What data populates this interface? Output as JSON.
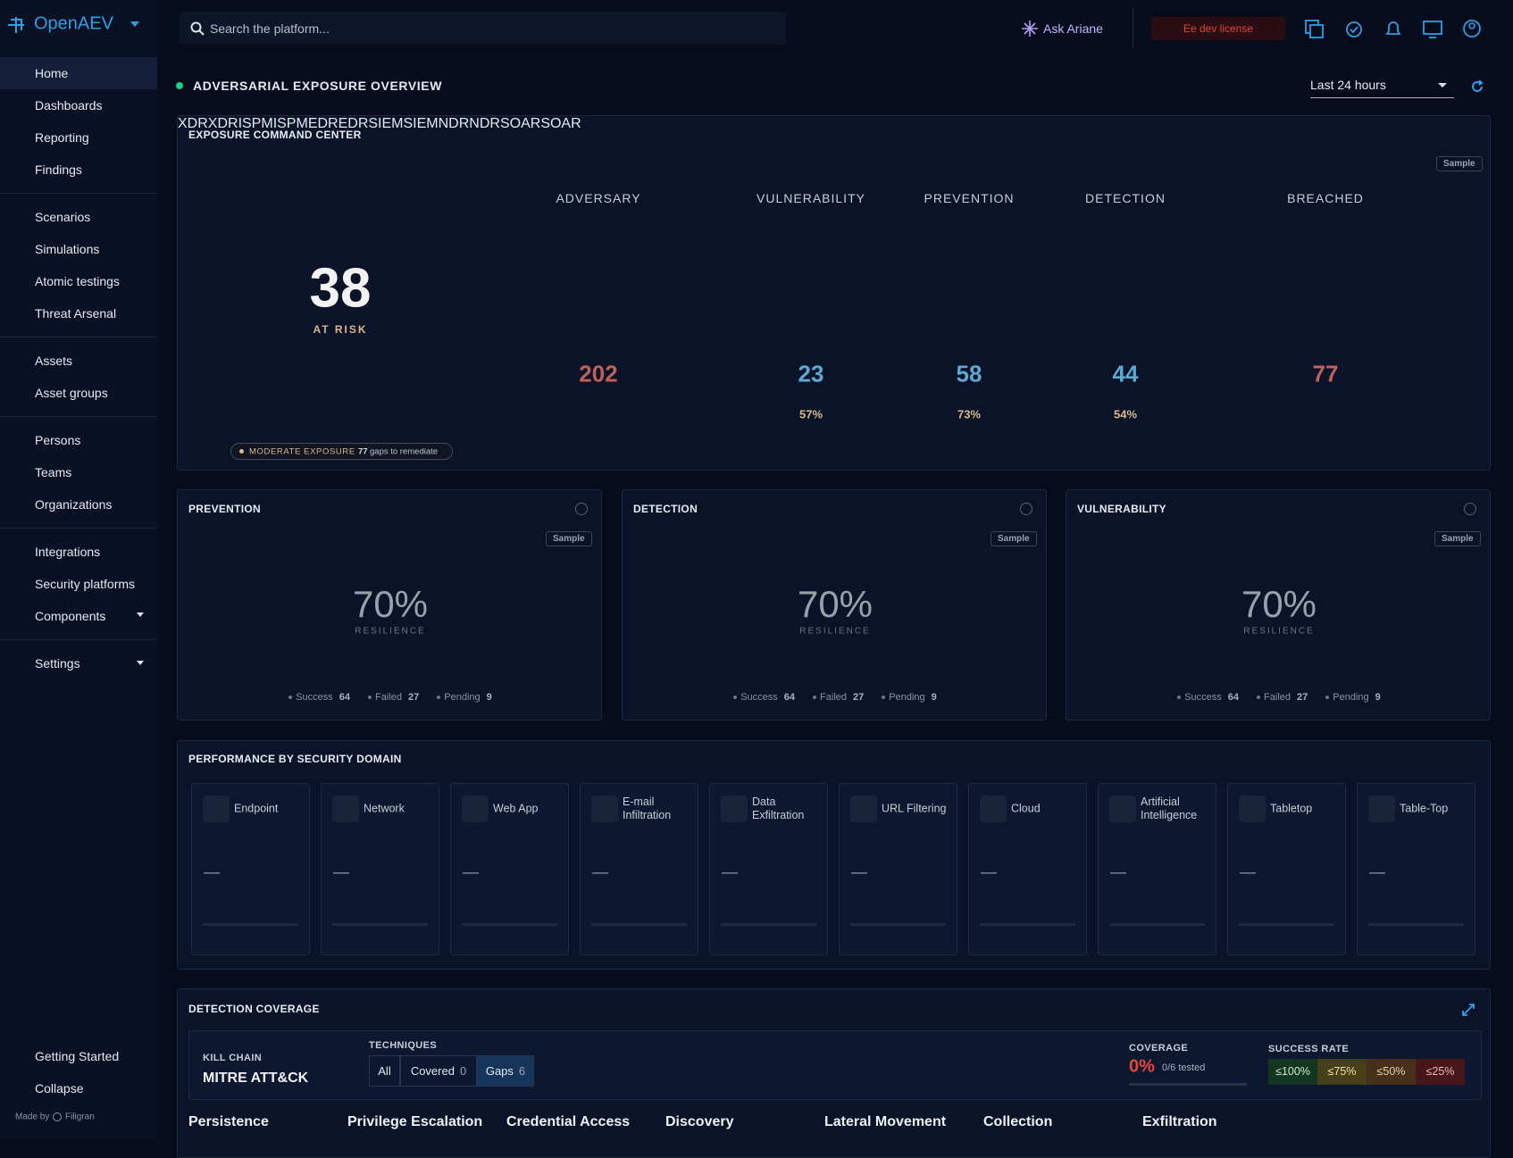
{
  "sidebar": {
    "brand": "OpenAEV",
    "groups": [
      [
        "Home",
        "Dashboards",
        "Reporting",
        "Findings"
      ],
      [
        "Scenarios",
        "Simulations",
        "Atomic testings",
        "Threat Arsenal"
      ],
      [
        "Assets",
        "Asset groups"
      ],
      [
        "Persons",
        "Teams",
        "Organizations"
      ],
      [
        "Integrations",
        "Security platforms",
        "Components"
      ],
      [
        "Settings"
      ]
    ],
    "footer": {
      "getting_started": "Getting Started",
      "collapse": "Collapse",
      "made_by": "Made by",
      "company": "Filigran"
    }
  },
  "topbar": {
    "search_placeholder": "Search the platform...",
    "assistant": "Ask Ariane",
    "license": "Ee dev license"
  },
  "header": {
    "title": "ADVERSARIAL EXPOSURE OVERVIEW",
    "time_range": "Last 24 hours"
  },
  "command_center": {
    "title": "EXPOSURE COMMAND CENTER",
    "badge": "Sample",
    "score": 38,
    "score_label": "AT RISK",
    "nodes": [
      "XDR",
      "ISPM",
      "EDR",
      "SIEM",
      "NDR",
      "SOAR"
    ],
    "status": {
      "level": "MODERATE EXPOSURE",
      "gaps": 77,
      "gaps_label": "gaps to remediate"
    },
    "stages": [
      {
        "name": "ADVERSARY",
        "value": 202
      },
      {
        "name": "VULNERABILITY",
        "value": 23,
        "progress": {
          "value": 57,
          "label": "57%"
        }
      },
      {
        "name": "PREVENTION",
        "value": 58,
        "progress": {
          "value": 73,
          "label": "73%"
        }
      },
      {
        "name": "DETECTION",
        "value": 44,
        "progress": {
          "value": 54,
          "label": "54%"
        }
      },
      {
        "name": "BREACHED",
        "value": 77
      }
    ]
  },
  "cards": [
    {
      "title": "PREVENTION",
      "badge": "Sample",
      "value": "70%",
      "value_label": "RESILIENCE",
      "legend": [
        {
          "label": "Success",
          "value": 64
        },
        {
          "label": "Failed",
          "value": 27
        },
        {
          "label": "Pending",
          "value": 9
        }
      ]
    },
    {
      "title": "DETECTION",
      "badge": "Sample",
      "value": "70%",
      "value_label": "RESILIENCE",
      "legend": [
        {
          "label": "Success",
          "value": 64
        },
        {
          "label": "Failed",
          "value": 27
        },
        {
          "label": "Pending",
          "value": 9
        }
      ]
    },
    {
      "title": "VULNERABILITY",
      "badge": "Sample",
      "value": "70%",
      "value_label": "RESILIENCE",
      "legend": [
        {
          "label": "Success",
          "value": 64
        },
        {
          "label": "Failed",
          "value": 27
        },
        {
          "label": "Pending",
          "value": 9
        }
      ]
    }
  ],
  "performance": {
    "title": "PERFORMANCE BY SECURITY DOMAIN",
    "domains": [
      {
        "name": "Endpoint",
        "value": "—"
      },
      {
        "name": "Network",
        "value": "—"
      },
      {
        "name": "Web App",
        "value": "—"
      },
      {
        "name": "E-mail Infiltration",
        "value": "—"
      },
      {
        "name": "Data Exfiltration",
        "value": "—"
      },
      {
        "name": "URL Filtering",
        "value": "—"
      },
      {
        "name": "Cloud",
        "value": "—"
      },
      {
        "name": "Artificial Intelligence",
        "value": "—"
      },
      {
        "name": "Tabletop",
        "value": "—"
      },
      {
        "name": "Table-Top",
        "value": "—"
      }
    ]
  },
  "coverage": {
    "title": "DETECTION COVERAGE",
    "kill_chain_label": "KILL CHAIN",
    "kill_chain": "MITRE ATT&CK",
    "techniques_label": "TECHNIQUES",
    "filters": [
      {
        "label": "All"
      },
      {
        "label": "Covered",
        "count": 0
      },
      {
        "label": "Gaps",
        "count": 6
      }
    ],
    "coverage_label": "COVERAGE",
    "coverage_value": "0%",
    "coverage_detail": "0/6 tested",
    "success_rate_label": "SUCCESS RATE",
    "success_rates": [
      "≤100%",
      "≤75%",
      "≤50%",
      "≤25%"
    ],
    "tactics": [
      "Persistence",
      "Privilege Escalation",
      "Credential Access",
      "Discovery",
      "Lateral Movement",
      "Collection",
      "Exfiltration"
    ]
  }
}
